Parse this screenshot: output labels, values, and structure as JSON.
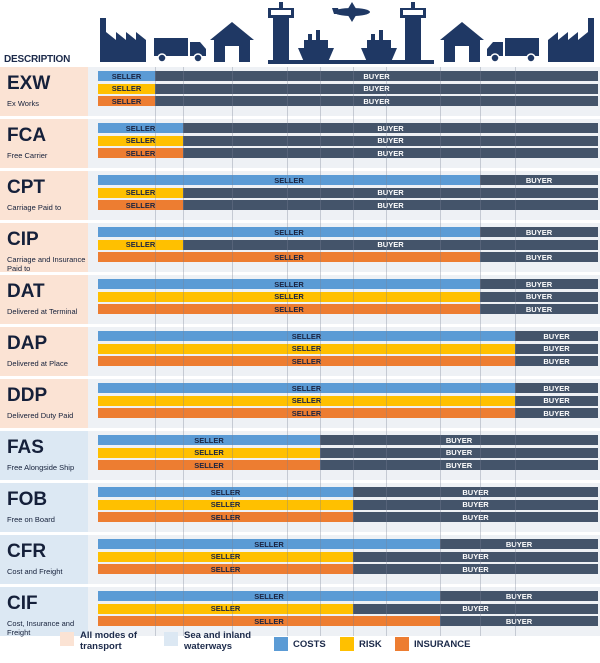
{
  "header": {
    "description_label": "DESCRIPTION"
  },
  "colors": {
    "costs": "#5b9bd5",
    "risk": "#ffc000",
    "insurance": "#ed7d31",
    "buyer": "#44546a",
    "row_all_modes": "#fbe3d4",
    "row_sea": "#dce8f3",
    "icon": "#1f3864"
  },
  "icons": [
    "factory-icon",
    "truck-icon",
    "warehouse-icon",
    "port-crane-icon",
    "ship-icon",
    "airplane-icon",
    "ship-icon",
    "port-crane-icon",
    "warehouse-icon",
    "truck-icon",
    "factory-icon"
  ],
  "stages": 11,
  "rows": [
    {
      "code": "EXW",
      "name": "Ex Works",
      "mode": "all",
      "bars": [
        {
          "type": "costs",
          "seller_label": "SELLER",
          "buyer_label": "BUYER",
          "split": 1
        },
        {
          "type": "risk",
          "seller_label": "SELLER",
          "buyer_label": "BUYER",
          "split": 1
        },
        {
          "type": "insurance",
          "seller_label": "SELLER",
          "buyer_label": "BUYER",
          "split": 1
        }
      ]
    },
    {
      "code": "FCA",
      "name": "Free Carrier",
      "mode": "all",
      "bars": [
        {
          "type": "costs",
          "seller_label": "SELLER",
          "buyer_label": "BUYER",
          "split": 2
        },
        {
          "type": "risk",
          "seller_label": "SELLER",
          "buyer_label": "BUYER",
          "split": 2
        },
        {
          "type": "insurance",
          "seller_label": "SELLER",
          "buyer_label": "BUYER",
          "split": 2
        }
      ]
    },
    {
      "code": "CPT",
      "name": "Carriage Paid to",
      "mode": "all",
      "bars": [
        {
          "type": "costs",
          "seller_label": "SELLER",
          "buyer_label": "BUYER",
          "split": 9
        },
        {
          "type": "risk",
          "seller_label": "SELLER",
          "buyer_label": "BUYER",
          "split": 2
        },
        {
          "type": "insurance",
          "seller_label": "SELLER",
          "buyer_label": "BUYER",
          "split": 2
        }
      ]
    },
    {
      "code": "CIP",
      "name": "Carriage and Insurance Paid to",
      "mode": "all",
      "bars": [
        {
          "type": "costs",
          "seller_label": "SELLER",
          "buyer_label": "BUYER",
          "split": 9
        },
        {
          "type": "risk",
          "seller_label": "SELLER",
          "buyer_label": "BUYER",
          "split": 2
        },
        {
          "type": "insurance",
          "seller_label": "SELLER",
          "buyer_label": "BUYER",
          "split": 9
        }
      ]
    },
    {
      "code": "DAT",
      "name": "Delivered at Terminal",
      "mode": "all",
      "bars": [
        {
          "type": "costs",
          "seller_label": "SELLER",
          "buyer_label": "BUYER",
          "split": 9
        },
        {
          "type": "risk",
          "seller_label": "SELLER",
          "buyer_label": "BUYER",
          "split": 9
        },
        {
          "type": "insurance",
          "seller_label": "SELLER",
          "buyer_label": "BUYER",
          "split": 9
        }
      ]
    },
    {
      "code": "DAP",
      "name": "Delivered at Place",
      "mode": "all",
      "bars": [
        {
          "type": "costs",
          "seller_label": "SELLER",
          "buyer_label": "BUYER",
          "split": 10
        },
        {
          "type": "risk",
          "seller_label": "SELLER",
          "buyer_label": "BUYER",
          "split": 10
        },
        {
          "type": "insurance",
          "seller_label": "SELLER",
          "buyer_label": "BUYER",
          "split": 10
        }
      ]
    },
    {
      "code": "DDP",
      "name": "Delivered Duty Paid",
      "mode": "all",
      "bars": [
        {
          "type": "costs",
          "seller_label": "SELLER",
          "buyer_label": "BUYER",
          "split": 10
        },
        {
          "type": "risk",
          "seller_label": "SELLER",
          "buyer_label": "BUYER",
          "split": 10
        },
        {
          "type": "insurance",
          "seller_label": "SELLER",
          "buyer_label": "BUYER",
          "split": 10
        }
      ]
    },
    {
      "code": "FAS",
      "name": "Free Alongside Ship",
      "mode": "sea",
      "bars": [
        {
          "type": "costs",
          "seller_label": "SELLER",
          "buyer_label": "BUYER",
          "split": 5
        },
        {
          "type": "risk",
          "seller_label": "SELLER",
          "buyer_label": "BUYER",
          "split": 5
        },
        {
          "type": "insurance",
          "seller_label": "SELLER",
          "buyer_label": "BUYER",
          "split": 5
        }
      ]
    },
    {
      "code": "FOB",
      "name": "Free on Board",
      "mode": "sea",
      "bars": [
        {
          "type": "costs",
          "seller_label": "SELLER",
          "buyer_label": "BUYER",
          "split": 6
        },
        {
          "type": "risk",
          "seller_label": "SELLER",
          "buyer_label": "BUYER",
          "split": 6
        },
        {
          "type": "insurance",
          "seller_label": "SELLER",
          "buyer_label": "BUYER",
          "split": 6
        }
      ]
    },
    {
      "code": "CFR",
      "name": "Cost and Freight",
      "mode": "sea",
      "bars": [
        {
          "type": "costs",
          "seller_label": "SELLER",
          "buyer_label": "BUYER",
          "split": 8
        },
        {
          "type": "risk",
          "seller_label": "SELLER",
          "buyer_label": "BUYER",
          "split": 6
        },
        {
          "type": "insurance",
          "seller_label": "SELLER",
          "buyer_label": "BUYER",
          "split": 6
        }
      ]
    },
    {
      "code": "CIF",
      "name": "Cost, Insurance and Freight",
      "mode": "sea",
      "bars": [
        {
          "type": "costs",
          "seller_label": "SELLER",
          "buyer_label": "BUYER",
          "split": 8
        },
        {
          "type": "risk",
          "seller_label": "SELLER",
          "buyer_label": "BUYER",
          "split": 6
        },
        {
          "type": "insurance",
          "seller_label": "SELLER",
          "buyer_label": "BUYER",
          "split": 8
        }
      ]
    }
  ],
  "legend": {
    "all_modes": "All modes of transport",
    "sea": "Sea and inland waterways",
    "costs": "COSTS",
    "risk": "RISK",
    "insurance": "INSURANCE"
  }
}
